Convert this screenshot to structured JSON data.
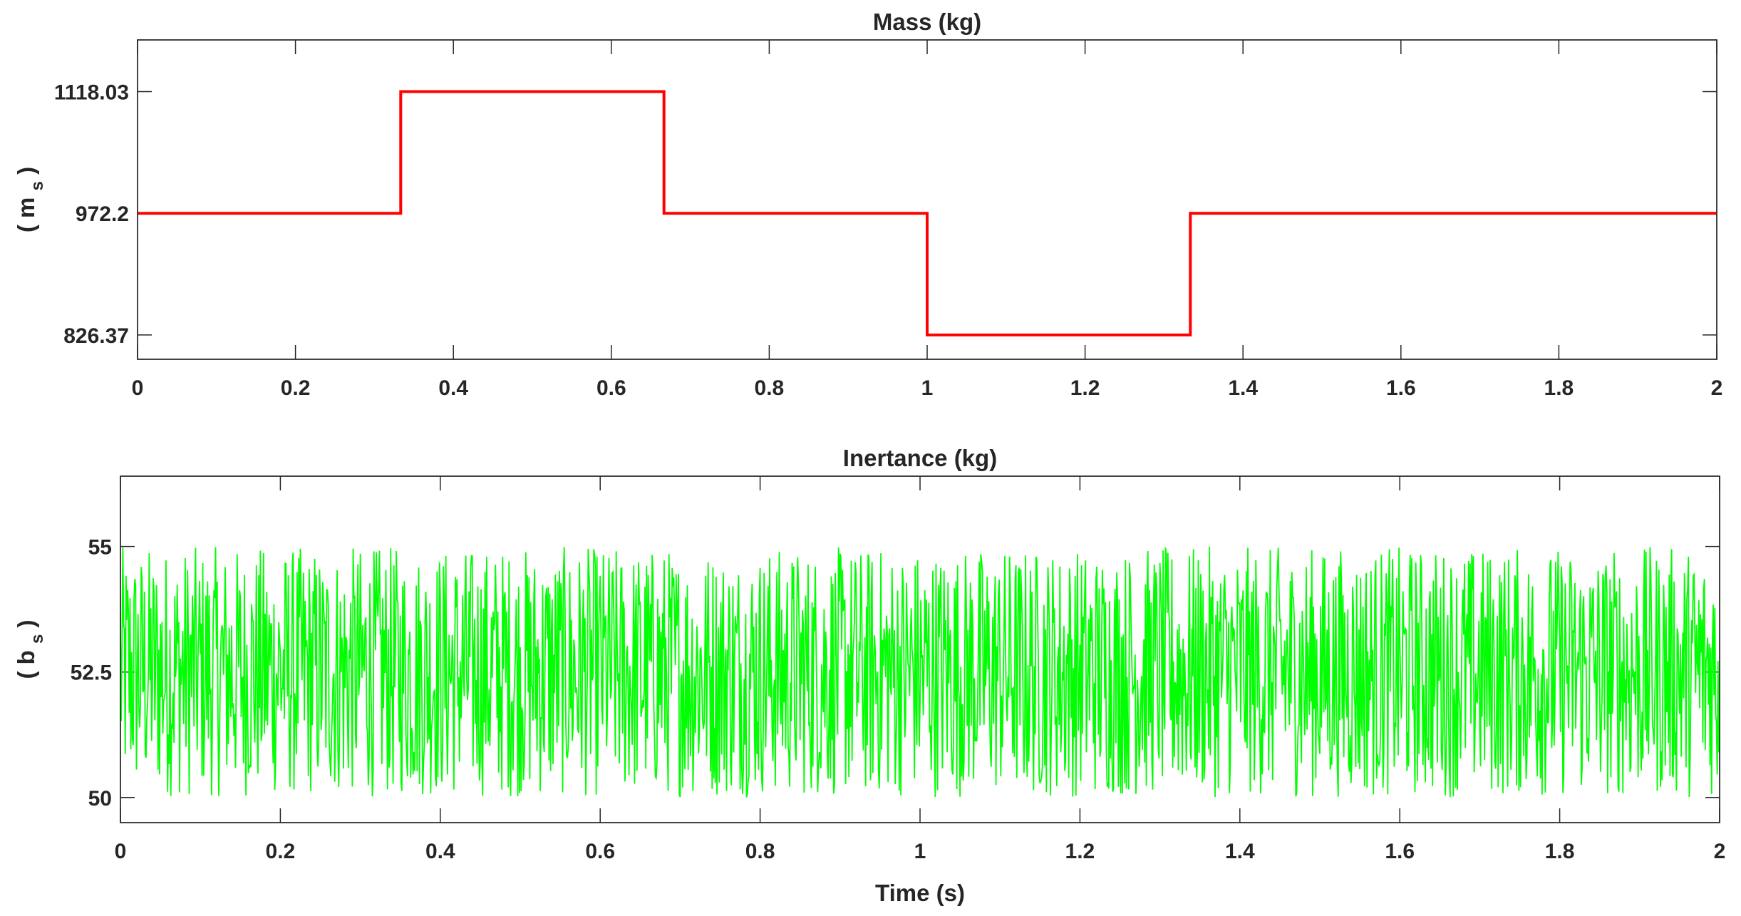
{
  "chart_data": [
    {
      "type": "line",
      "title": "Mass (kg)",
      "ylabel": "( m",
      "ylabel_subscript": "s",
      "ylabel_close": ")",
      "xlabel": "",
      "xlim": [
        0,
        2
      ],
      "ylim": [
        797.2,
        1180
      ],
      "xticks": [
        0,
        0.2,
        0.4,
        0.6,
        0.8,
        1,
        1.2,
        1.4,
        1.6,
        1.8,
        2
      ],
      "xtick_labels": [
        "0",
        "0.2",
        "0.4",
        "0.6",
        "0.8",
        "1",
        "1.2",
        "1.4",
        "1.6",
        "1.8",
        "2"
      ],
      "yticks": [
        826.37,
        972.2,
        1118.03
      ],
      "ytick_labels": [
        "826.37",
        "972.2",
        "1118.03"
      ],
      "grid": false,
      "series": [
        {
          "color": "#ff0000",
          "x": [
            0,
            0.3333,
            0.3333,
            0.6667,
            0.6667,
            1.0,
            1.0,
            1.3333,
            1.3333,
            2.0
          ],
          "y": [
            972.2,
            972.2,
            1118.03,
            1118.03,
            972.2,
            972.2,
            826.37,
            826.37,
            972.2,
            972.2
          ]
        }
      ]
    },
    {
      "type": "line",
      "title": "Inertance (kg)",
      "ylabel": "( b",
      "ylabel_subscript": "s",
      "ylabel_close": ")",
      "xlabel": "Time (s)",
      "xlim": [
        0,
        2
      ],
      "ylim": [
        49.5,
        56.4
      ],
      "xticks": [
        0,
        0.2,
        0.4,
        0.6,
        0.8,
        1,
        1.2,
        1.4,
        1.6,
        1.8,
        2
      ],
      "xtick_labels": [
        "0",
        "0.2",
        "0.4",
        "0.6",
        "0.8",
        "1",
        "1.2",
        "1.4",
        "1.6",
        "1.8",
        "2"
      ],
      "yticks": [
        50,
        52.5,
        55
      ],
      "ytick_labels": [
        "50",
        "52.5",
        "55"
      ],
      "grid": false,
      "series": [
        {
          "color": "#00ff00",
          "noise": {
            "min": 50,
            "max": 55,
            "sample_count": 2000,
            "x_start": 0,
            "x_end": 2
          }
        }
      ]
    }
  ]
}
